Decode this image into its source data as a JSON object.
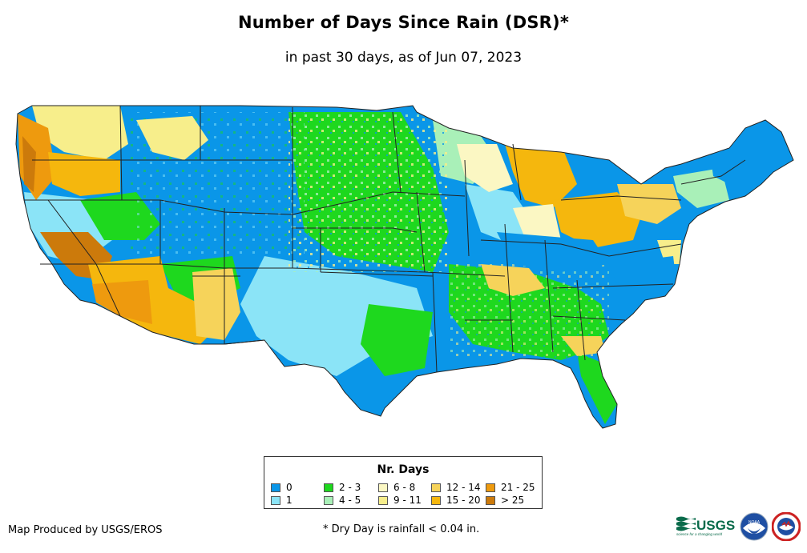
{
  "title": "Number of Days Since Rain (DSR)*",
  "subtitle": "in past 30 days, as of Jun 07, 2023",
  "legend": {
    "title": "Nr. Days",
    "items": [
      {
        "label": "0",
        "color": "#0a96e8"
      },
      {
        "label": "1",
        "color": "#8be4f7"
      },
      {
        "label": "2 - 3",
        "color": "#1ed81e"
      },
      {
        "label": "4 - 5",
        "color": "#a9f0b8"
      },
      {
        "label": "6 - 8",
        "color": "#fbf7c3"
      },
      {
        "label": "9 - 11",
        "color": "#f7ee8b"
      },
      {
        "label": "12 - 14",
        "color": "#f6d35a"
      },
      {
        "label": "15 - 20",
        "color": "#f5b70d"
      },
      {
        "label": "21 - 25",
        "color": "#ee9a0e"
      },
      {
        "label": "> 25",
        "color": "#cc7a0b"
      }
    ]
  },
  "credit": "Map Produced by USGS/EROS",
  "footnote": "* Dry Day is rainfall < 0.04 in.",
  "logos": {
    "usgs": "USGS",
    "usgs_tagline": "science for a changing world",
    "noaa": "NOAA",
    "nws": "NWS"
  },
  "map": {
    "subject": "Contiguous United States with state boundaries",
    "regional_days_category": {
      "Pacific Coast (WA, OR, N CA)": "15 - 20 / 21 - 25",
      "Southern California & Arizona": "15 - 20 / > 25",
      "Northern Rockies (ID, MT, WY)": "0",
      "Great Plains (ND, SD, NE, KS)": "2 - 3",
      "Texas & Oklahoma": "0 / 1",
      "Great Lakes (MI)": "15 - 20",
      "Ohio Valley & Pennsylvania": "15 - 20",
      "Southeast (AL, GA, SC)": "2 - 3",
      "Florida": "2 - 3",
      "New England (ME)": "0",
      "Carolinas & Virginia": "0"
    }
  }
}
